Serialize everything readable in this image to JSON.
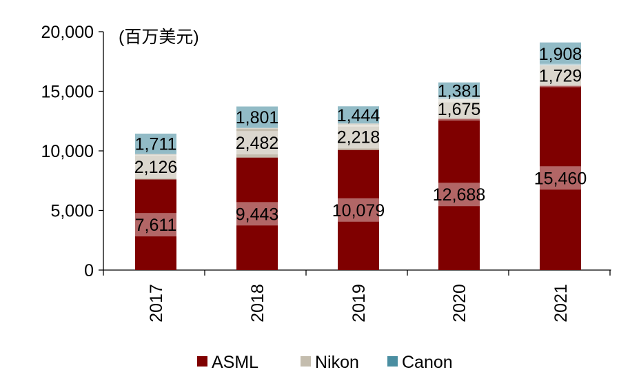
{
  "chart_data": {
    "type": "bar",
    "stacked": true,
    "unit_label": "(百万美元)",
    "categories": [
      "2017",
      "2018",
      "2019",
      "2020",
      "2021"
    ],
    "x_tick_labels": [
      "2017",
      "2018",
      "2019",
      "2020",
      "2021"
    ],
    "ylim": [
      0,
      20000
    ],
    "y_ticks": [
      0,
      5000,
      10000,
      15000,
      20000
    ],
    "y_tick_labels": [
      "0",
      "5,000",
      "10,000",
      "15,000",
      "20,000"
    ],
    "series": [
      {
        "name": "ASML",
        "color": "#7f0000",
        "values": [
          7611,
          9443,
          10079,
          12688,
          15460
        ],
        "labels": [
          "7,611",
          "9,443",
          "10,079",
          "12,688",
          "15,460"
        ]
      },
      {
        "name": "Nikon",
        "color": "#c4bdae",
        "values": [
          2126,
          2482,
          2218,
          1675,
          1729
        ],
        "labels": [
          "2,126",
          "2,482",
          "2,218",
          "1,675",
          "1,729"
        ]
      },
      {
        "name": "Canon",
        "color": "#4a8ea1",
        "values": [
          1711,
          1801,
          1444,
          1381,
          1908
        ],
        "labels": [
          "1,711",
          "1,801",
          "1,444",
          "1,381",
          "1,908"
        ]
      }
    ],
    "legend": {
      "position": "bottom",
      "entries": [
        "ASML",
        "Nikon",
        "Canon"
      ]
    },
    "grid": false
  }
}
